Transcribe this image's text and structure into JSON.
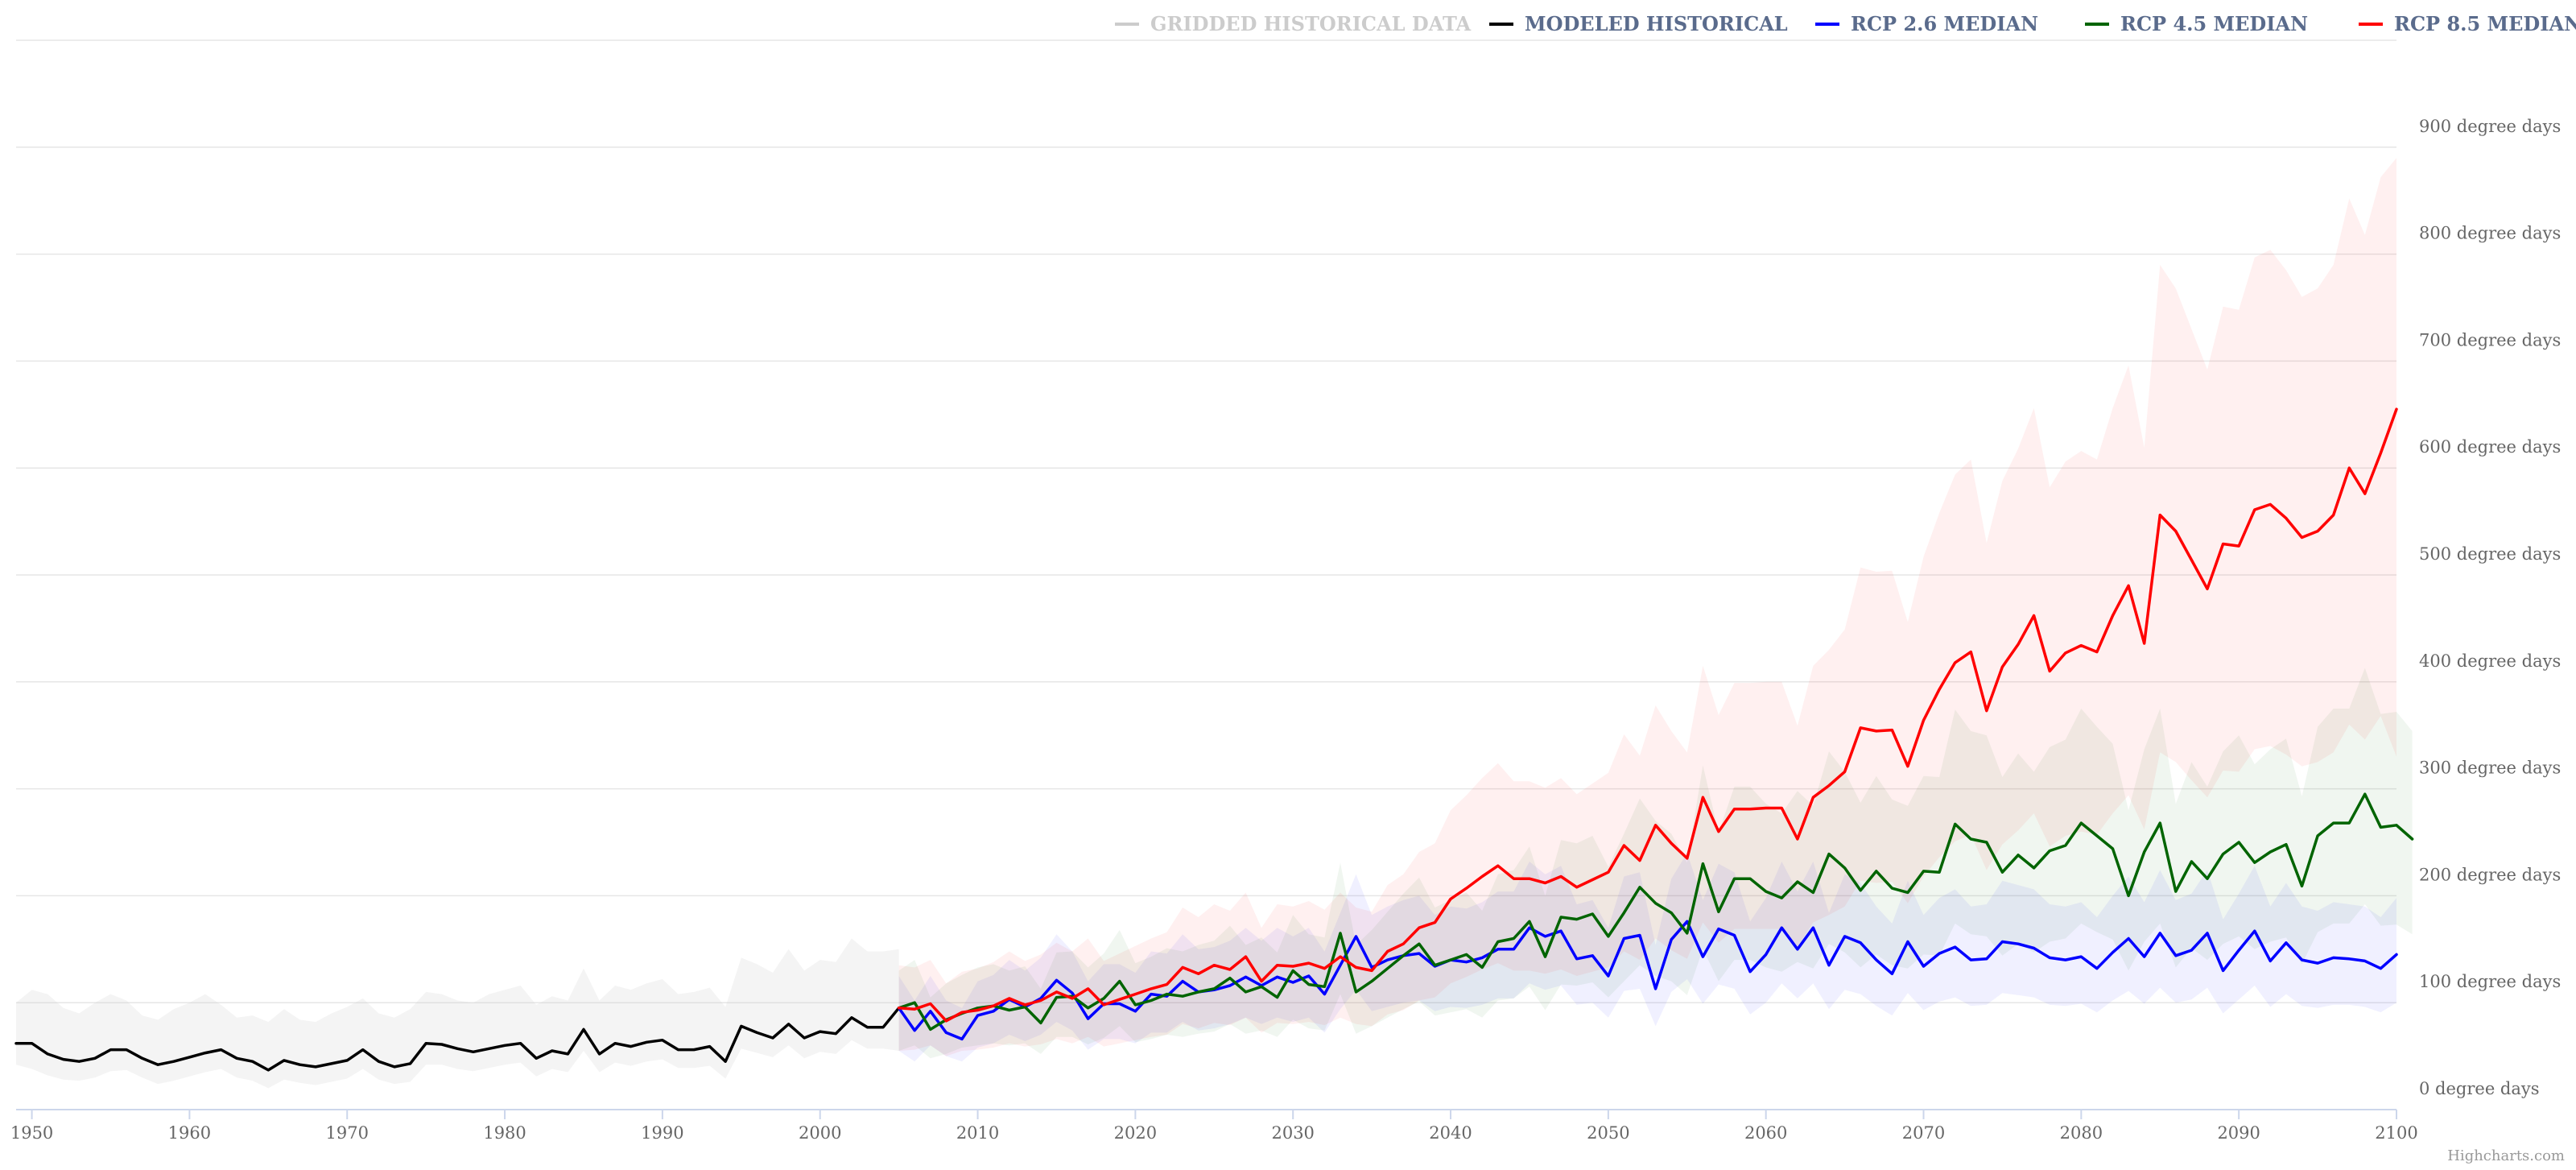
{
  "credit": "Highcharts.com",
  "chart_data": {
    "type": "line",
    "title": "",
    "xlabel": "",
    "ylabel": "",
    "xlim": [
      1949,
      2100
    ],
    "ylim": [
      0,
      1000
    ],
    "x_ticks": [
      1950,
      1960,
      1970,
      1980,
      1990,
      2000,
      2010,
      2020,
      2030,
      2040,
      2050,
      2060,
      2070,
      2080,
      2090,
      2100
    ],
    "y_ticks": [
      0,
      100,
      200,
      300,
      400,
      500,
      600,
      700,
      800,
      900
    ],
    "y_tick_suffix": " degree days",
    "grid": true,
    "legend_position": "top-right",
    "legend": [
      {
        "name": "GRIDDED HISTORICAL DATA",
        "color": "#cccccc",
        "hidden": true
      },
      {
        "name": "MODELED HISTORICAL",
        "color": "#000000"
      },
      {
        "name": "RCP 2.6 MEDIAN",
        "color": "#0000ff"
      },
      {
        "name": "RCP 4.5 MEDIAN",
        "color": "#006400"
      },
      {
        "name": "RCP 8.5 MEDIAN",
        "color": "#ff0000"
      }
    ],
    "series": [
      {
        "name": "MODELED HISTORICAL",
        "color": "#000000",
        "x_start": 1949,
        "values": [
          62,
          62,
          52,
          47,
          45,
          48,
          56,
          56,
          48,
          42,
          45,
          49,
          53,
          56,
          48,
          45,
          37,
          46,
          42,
          40,
          43,
          46,
          56,
          45,
          40,
          43,
          62,
          61,
          57,
          54,
          57,
          60,
          62,
          48,
          55,
          52,
          75,
          52,
          62,
          59,
          63,
          65,
          56,
          56,
          59,
          45,
          78,
          72,
          67,
          80,
          67,
          73,
          71,
          86,
          77,
          77,
          95
        ]
      },
      {
        "name": "RCP 2.6 MEDIAN",
        "color": "#0000ff",
        "x_start": 2005,
        "values": [
          95,
          74,
          92,
          72,
          66,
          88,
          92,
          103,
          96,
          104,
          121,
          109,
          85,
          99,
          99,
          92,
          108,
          106,
          120,
          110,
          112,
          116,
          124,
          116,
          124,
          119,
          125,
          108,
          135,
          162,
          133,
          140,
          144,
          146,
          134,
          140,
          138,
          142,
          150,
          150,
          170,
          162,
          167,
          141,
          144,
          125,
          160,
          163,
          113,
          159,
          176,
          143,
          169,
          163,
          129,
          145,
          170,
          150,
          170,
          135,
          162,
          156,
          140,
          127,
          157,
          134,
          146,
          152,
          140,
          141,
          157,
          155,
          151,
          142,
          140,
          143,
          132,
          147,
          160,
          143,
          165,
          144,
          149,
          165,
          130,
          149,
          167,
          139,
          156,
          140,
          137,
          142,
          141,
          139,
          132,
          145
        ]
      },
      {
        "name": "RCP 4.5 MEDIAN",
        "color": "#006400",
        "x_start": 2005,
        "values": [
          95,
          100,
          75,
          84,
          90,
          95,
          97,
          93,
          96,
          81,
          105,
          106,
          95,
          104,
          120,
          98,
          102,
          108,
          106,
          110,
          113,
          123,
          110,
          115,
          105,
          130,
          117,
          115,
          165,
          110,
          120,
          132,
          144,
          155,
          135,
          140,
          145,
          133,
          157,
          160,
          176,
          143,
          180,
          178,
          183,
          162,
          184,
          208,
          193,
          184,
          165,
          230,
          185,
          216,
          216,
          204,
          198,
          213,
          203,
          239,
          226,
          205,
          223,
          207,
          203,
          223,
          222,
          267,
          253,
          250,
          222,
          238,
          226,
          242,
          247,
          268,
          256,
          244,
          200,
          241,
          268,
          204,
          232,
          216,
          239,
          250,
          231,
          241,
          248,
          209,
          256,
          268,
          268,
          295,
          264,
          266,
          253
        ]
      },
      {
        "name": "RCP 8.5 MEDIAN",
        "color": "#ff0000",
        "x_start": 2005,
        "values": [
          95,
          94,
          99,
          83,
          91,
          93,
          97,
          104,
          98,
          102,
          110,
          104,
          113,
          98,
          103,
          108,
          113,
          117,
          133,
          127,
          135,
          131,
          143,
          120,
          135,
          134,
          137,
          132,
          143,
          133,
          130,
          148,
          155,
          170,
          175,
          197,
          207,
          218,
          228,
          216,
          216,
          212,
          218,
          208,
          215,
          222,
          247,
          233,
          266,
          249,
          235,
          292,
          260,
          281,
          281,
          282,
          282,
          253,
          292,
          303,
          316,
          357,
          354,
          355,
          321,
          364,
          393,
          418,
          428,
          373,
          414,
          435,
          462,
          410,
          427,
          434,
          428,
          462,
          490,
          436,
          556,
          541,
          514,
          487,
          529,
          527,
          561,
          566,
          553,
          535,
          541,
          556,
          600,
          576,
          614,
          655
        ]
      }
    ],
    "bands": [
      {
        "name": "MODELED HISTORICAL",
        "color": "#cccccc",
        "x_start": 1949,
        "lower": [
          42,
          38,
          32,
          28,
          27,
          30,
          36,
          37,
          30,
          24,
          27,
          31,
          35,
          38,
          30,
          27,
          20,
          28,
          25,
          23,
          26,
          29,
          38,
          28,
          24,
          26,
          42,
          42,
          38,
          36,
          39,
          42,
          44,
          31,
          38,
          35,
          55,
          35,
          44,
          41,
          45,
          47,
          39,
          39,
          41,
          29,
          57,
          53,
          49,
          60,
          48,
          54,
          52,
          65,
          57,
          57,
          55
        ],
        "upper": [
          100,
          112,
          108,
          95,
          90,
          100,
          108,
          102,
          88,
          84,
          94,
          100,
          108,
          98,
          86,
          88,
          82,
          94,
          84,
          82,
          90,
          96,
          104,
          90,
          86,
          94,
          110,
          108,
          102,
          100,
          108,
          112,
          116,
          98,
          106,
          102,
          132,
          102,
          116,
          112,
          118,
          122,
          108,
          110,
          114,
          96,
          142,
          136,
          128,
          150,
          130,
          140,
          138,
          160,
          148,
          148,
          150
        ]
      },
      {
        "name": "RCP 2.6",
        "color": "#0000ff",
        "x_start": 2005,
        "lower": [
          55,
          45,
          60,
          50,
          45,
          58,
          62,
          70,
          64,
          70,
          82,
          74,
          56,
          66,
          66,
          62,
          72,
          72,
          82,
          74,
          76,
          80,
          86,
          80,
          86,
          82,
          86,
          72,
          94,
          112,
          92,
          96,
          100,
          102,
          92,
          96,
          95,
          98,
          104,
          104,
          118,
          112,
          116,
          98,
          100,
          86,
          111,
          113,
          78,
          110,
          122,
          99,
          117,
          113,
          89,
          100,
          118,
          104,
          118,
          94,
          112,
          108,
          97,
          88,
          109,
          93,
          101,
          105,
          97,
          98,
          109,
          107,
          105,
          98,
          97,
          99,
          91,
          102,
          111,
          99,
          114,
          100,
          103,
          114,
          90,
          103,
          116,
          96,
          108,
          97,
          95,
          98,
          98,
          96,
          91,
          100
        ],
        "upper": [
          125,
          102,
          125,
          102,
          95,
          120,
          126,
          140,
          130,
          142,
          164,
          148,
          120,
          136,
          136,
          128,
          148,
          146,
          164,
          150,
          152,
          158,
          170,
          158,
          170,
          162,
          170,
          148,
          184,
          220,
          182,
          190,
          196,
          200,
          182,
          190,
          188,
          194,
          204,
          204,
          232,
          220,
          228,
          192,
          196,
          170,
          218,
          222,
          154,
          216,
          240,
          196,
          230,
          222,
          176,
          198,
          232,
          204,
          232,
          184,
          220,
          212,
          190,
          174,
          214,
          182,
          198,
          206,
          190,
          192,
          214,
          210,
          206,
          192,
          190,
          194,
          180,
          200,
          218,
          194,
          224,
          196,
          202,
          224,
          178,
          202,
          228,
          190,
          212,
          190,
          186,
          194,
          192,
          190,
          180,
          198
        ]
      },
      {
        "name": "RCP 4.5",
        "color": "#006400",
        "x_start": 2005,
        "lower": [
          55,
          60,
          48,
          52,
          58,
          60,
          62,
          60,
          62,
          52,
          68,
          68,
          61,
          67,
          78,
          63,
          66,
          70,
          68,
          71,
          73,
          80,
          71,
          74,
          68,
          84,
          76,
          74,
          108,
          71,
          78,
          86,
          94,
          101,
          88,
          91,
          94,
          86,
          102,
          104,
          115,
          93,
          117,
          116,
          119,
          105,
          120,
          135,
          125,
          120,
          107,
          150,
          120,
          140,
          140,
          133,
          129,
          138,
          132,
          155,
          147,
          133,
          145,
          135,
          132,
          145,
          144,
          174,
          164,
          162,
          144,
          155,
          147,
          157,
          160,
          174,
          166,
          159,
          130,
          157,
          174,
          133,
          151,
          140,
          155,
          162,
          150,
          157,
          161,
          136,
          166,
          174,
          174,
          192,
          172,
          173,
          164
        ],
        "upper": [
          130,
          140,
          105,
          118,
          126,
          133,
          136,
          130,
          134,
          113,
          147,
          148,
          133,
          146,
          168,
          137,
          143,
          151,
          148,
          154,
          158,
          172,
          154,
          161,
          147,
          182,
          164,
          161,
          231,
          154,
          168,
          185,
          202,
          217,
          189,
          196,
          203,
          186,
          220,
          224,
          246,
          200,
          252,
          249,
          256,
          227,
          258,
          291,
          270,
          258,
          231,
          322,
          259,
          302,
          302,
          286,
          277,
          298,
          284,
          335,
          316,
          287,
          312,
          290,
          284,
          312,
          311,
          374,
          354,
          350,
          311,
          333,
          316,
          339,
          346,
          375,
          358,
          342,
          280,
          337,
          375,
          286,
          325,
          302,
          335,
          350,
          323,
          337,
          347,
          293,
          358,
          375,
          375,
          413,
          370,
          372,
          354
        ]
      },
      {
        "name": "RCP 8.5",
        "color": "#ff0000",
        "x_start": 2005,
        "lower": [
          55,
          56,
          60,
          50,
          55,
          56,
          58,
          62,
          59,
          61,
          66,
          62,
          68,
          59,
          62,
          65,
          68,
          70,
          80,
          76,
          81,
          79,
          86,
          72,
          81,
          80,
          82,
          79,
          86,
          80,
          78,
          89,
          93,
          102,
          105,
          118,
          124,
          131,
          137,
          130,
          130,
          127,
          131,
          125,
          129,
          133,
          148,
          140,
          160,
          149,
          141,
          175,
          156,
          169,
          169,
          169,
          169,
          152,
          175,
          182,
          190,
          214,
          212,
          213,
          193,
          218,
          236,
          251,
          257,
          224,
          248,
          261,
          277,
          246,
          256,
          260,
          257,
          277,
          294,
          262,
          334,
          325,
          308,
          292,
          317,
          316,
          337,
          340,
          332,
          321,
          325,
          334,
          360,
          346,
          368,
          330
        ],
        "upper": [
          135,
          133,
          140,
          118,
          129,
          132,
          138,
          148,
          139,
          145,
          156,
          148,
          160,
          139,
          146,
          153,
          160,
          166,
          189,
          180,
          192,
          186,
          203,
          170,
          192,
          190,
          195,
          187,
          203,
          189,
          185,
          210,
          220,
          241,
          249,
          280,
          294,
          310,
          324,
          307,
          307,
          301,
          310,
          295,
          305,
          315,
          351,
          331,
          378,
          354,
          334,
          415,
          369,
          399,
          399,
          400,
          400,
          359,
          415,
          430,
          449,
          507,
          503,
          504,
          456,
          517,
          558,
          594,
          608,
          530,
          588,
          618,
          656,
          582,
          606,
          616,
          608,
          656,
          696,
          619,
          790,
          768,
          730,
          692,
          751,
          748,
          797,
          804,
          785,
          760,
          768,
          790,
          852,
          818,
          872,
          890
        ]
      }
    ]
  }
}
